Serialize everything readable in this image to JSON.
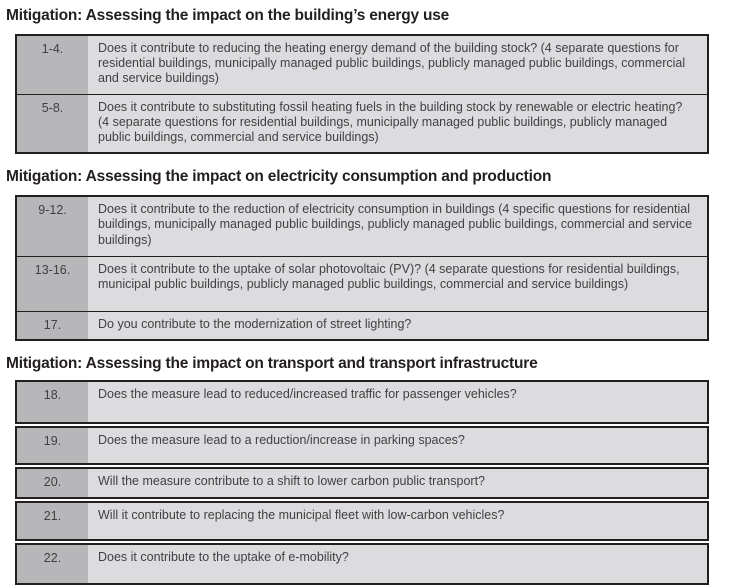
{
  "colors": {
    "page_background": "#ffffff",
    "number_cell_background": "#b7b7b9",
    "question_cell_background": "#dcdcde",
    "table_border": "#231f20",
    "body_text": "#414042",
    "heading_text": "#231f20"
  },
  "sections": [
    {
      "title": "Mitigation: Assessing the impact on the building’s energy use",
      "table_style": "grouped",
      "rows": [
        {
          "num": "1-4.",
          "question": "Does it contribute to reducing the heating energy demand of the building stock? (4 separate questions for residential buildings, municipally managed public buildings, publicly managed public buildings, commercial and service buildings)"
        },
        {
          "num": "5-8.",
          "question": "Does it contribute to substituting fossil heating fuels in the building stock by renewable or electric heating? (4 separate questions for residential buildings, municipally managed public buildings, publicly managed public buildings, commercial and service buildings)"
        }
      ]
    },
    {
      "title": "Mitigation: Assessing the impact on electricity consumption and production",
      "table_style": "grouped",
      "rows": [
        {
          "num": "9-12.",
          "question": "Does it contribute to the reduction of electricity consumption in buildings (4 specific questions for residential buildings, municipally managed public buildings, publicly managed public buildings, commercial and service buildings)"
        },
        {
          "num": "13-16.",
          "question": "Does it contribute to the uptake of solar photovoltaic (PV)? (4 separate questions for residential buildings, municipal public buildings, publicly managed public buildings, commercial and service buildings)"
        },
        {
          "num": "17.",
          "question": "Do you contribute to the modernization of street lighting?"
        }
      ]
    },
    {
      "title": "Mitigation: Assessing the impact on transport and transport infrastructure",
      "table_style": "separate",
      "rows": [
        {
          "num": "18.",
          "question": "Does the measure lead to reduced/increased traffic for passenger vehicles?"
        },
        {
          "num": "19.",
          "question": "Does the measure lead to a reduction/increase in parking spaces?"
        },
        {
          "num": "20.",
          "question": "Will the measure contribute to a shift to lower carbon public transport?"
        },
        {
          "num": "21.",
          "question": "Will it contribute to replacing the municipal fleet with low-carbon vehicles?"
        },
        {
          "num": "22.",
          "question": "Does it contribute to the uptake of e-mobility?"
        }
      ]
    }
  ]
}
